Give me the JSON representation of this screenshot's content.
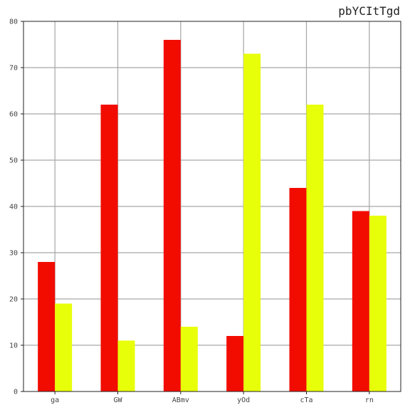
{
  "chart_data": {
    "type": "bar",
    "title": "pbYCItTgd",
    "xlabel": "",
    "ylabel": "",
    "categories": [
      "ga",
      "GW",
      "ABmv",
      "yOd",
      "cTa",
      "rn"
    ],
    "series": [
      {
        "color": "#f20c00",
        "values": [
          28,
          62,
          76,
          12,
          44,
          39
        ]
      },
      {
        "color": "#e8ff0a",
        "values": [
          19,
          11,
          14,
          73,
          62,
          38
        ]
      }
    ],
    "ylim": [
      0,
      80
    ],
    "yticks": [
      0,
      10,
      20,
      30,
      40,
      50,
      60,
      70,
      80
    ],
    "grid": true,
    "legend": "none"
  }
}
